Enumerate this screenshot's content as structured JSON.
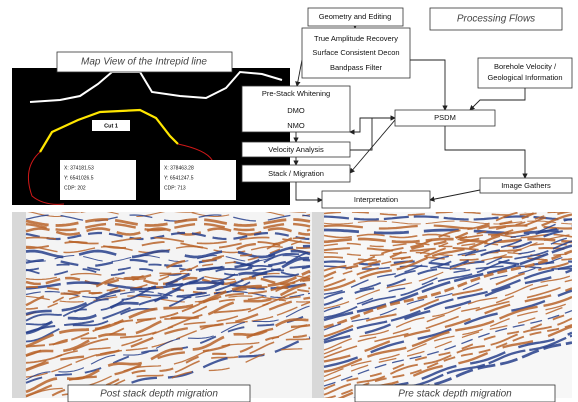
{
  "header": {
    "title": "Processing Flows"
  },
  "map": {
    "title": "Map View of the Intrepid line",
    "cut_label": "Cut 1",
    "points": [
      {
        "x": "X: 374181.53",
        "y": "Y: 6541026.5",
        "cdp": "CDP: 202"
      },
      {
        "x": "X: 378463.28",
        "y": "Y: 6541247.5",
        "cdp": "CDP: 713"
      }
    ]
  },
  "flow": {
    "geometry": "Geometry and Editing",
    "preprocessing": [
      "True Amplitude Recovery",
      "Surface Consistent Decon",
      "Bandpass Filter"
    ],
    "borehole": [
      "Borehole Velocity /",
      "Geological Information"
    ],
    "prestack": [
      "Pre-Stack Whitening",
      "DMO",
      "NMO"
    ],
    "psdm": "PSDM",
    "velocity": "Velocity Analysis",
    "stack": "Stack / Migration",
    "interpretation": "Interpretation",
    "gathers": "Image Gathers"
  },
  "panels": [
    {
      "label": "Post stack depth migration"
    },
    {
      "label": "Pre stack depth migration"
    }
  ]
}
